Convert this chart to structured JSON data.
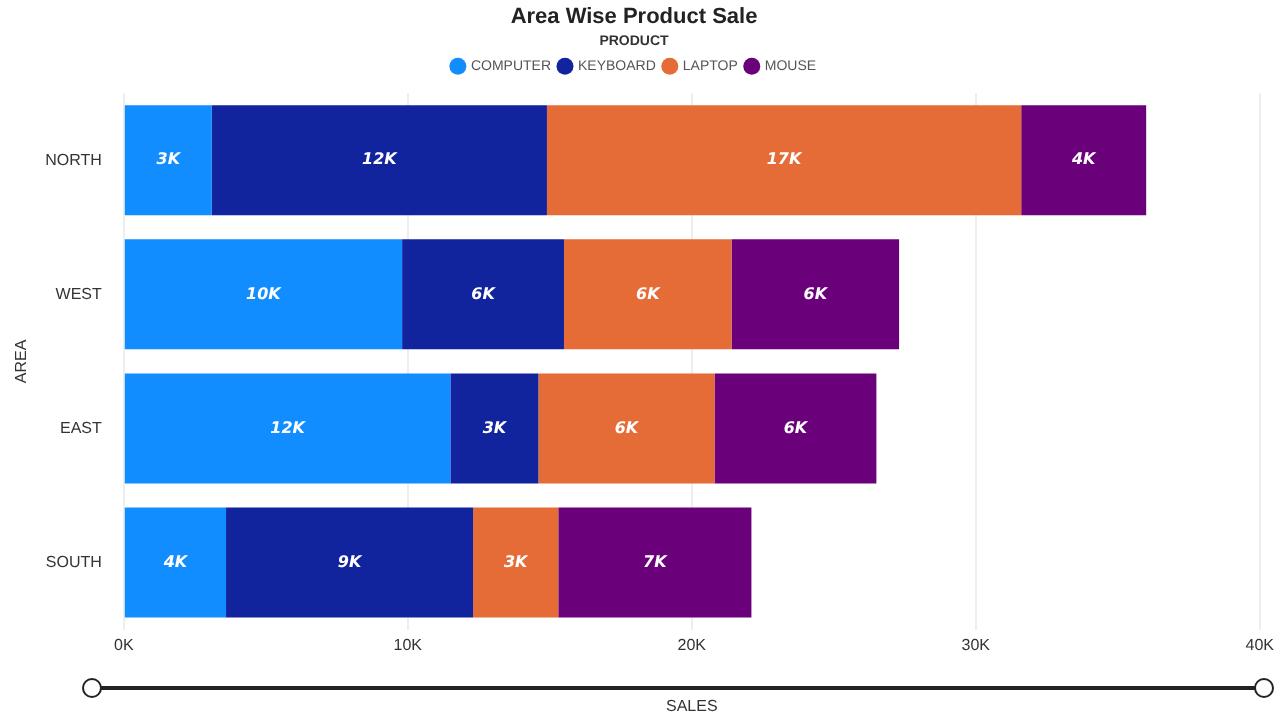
{
  "chart_data": {
    "type": "bar",
    "orientation": "horizontal",
    "stacked": true,
    "title": "Area Wise Product Sale",
    "legend_title": "PRODUCT",
    "xlabel": "SALES",
    "ylabel": "AREA",
    "categories": [
      "NORTH",
      "WEST",
      "EAST",
      "SOUTH"
    ],
    "series": [
      {
        "name": "COMPUTER",
        "color": "#118dff",
        "values": [
          3.1,
          9.8,
          11.5,
          3.6
        ],
        "value_labels": [
          "3K",
          "10K",
          "12K",
          "4K"
        ]
      },
      {
        "name": "KEYBOARD",
        "color": "#12239e",
        "values": [
          11.8,
          5.7,
          3.1,
          8.7
        ],
        "value_labels": [
          "12K",
          "6K",
          "3K",
          "9K"
        ]
      },
      {
        "name": "LAPTOP",
        "color": "#e66c37",
        "values": [
          16.7,
          5.9,
          6.2,
          3.0
        ],
        "value_labels": [
          "17K",
          "6K",
          "6K",
          "3K"
        ]
      },
      {
        "name": "MOUSE",
        "color": "#6b007b",
        "values": [
          4.4,
          5.9,
          5.7,
          6.8
        ],
        "value_labels": [
          "4K",
          "6K",
          "6K",
          "7K"
        ]
      }
    ],
    "xlim": [
      0,
      40
    ],
    "xticks": [
      {
        "value": 0,
        "label": "0K"
      },
      {
        "value": 10,
        "label": "10K"
      },
      {
        "value": 20,
        "label": "20K"
      },
      {
        "value": 30,
        "label": "30K"
      },
      {
        "value": 40,
        "label": "40K"
      }
    ],
    "grid": "x",
    "legend": "top"
  }
}
